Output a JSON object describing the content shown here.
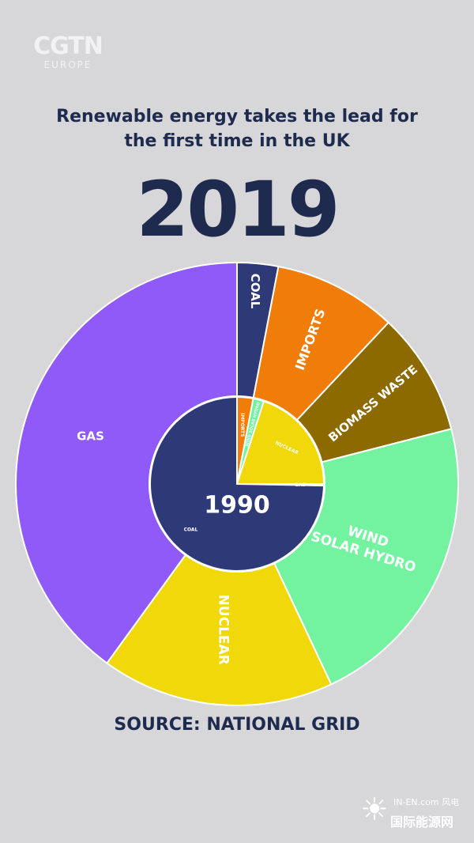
{
  "logo": {
    "main": "CGTN",
    "sub": "EUROPE"
  },
  "headline": {
    "line1": "Renewable energy takes the lead for",
    "line2": "the first time in the UK"
  },
  "year_outer": "2019",
  "year_inner": "1990",
  "source": "SOURCE: NATIONAL GRID",
  "watermark": {
    "text": "国际能源网",
    "small": "IN-EN.com 风电"
  },
  "colors": {
    "background": "#d7d7d9",
    "text": "#1e2a4e",
    "coal": "#2e3a78",
    "imports": "#f07c0a",
    "biomass_waste": "#8c6a00",
    "wind_solar_hydro": "#73f2a0",
    "nuclear": "#f0d80a",
    "gas": "#8f5af7"
  },
  "chart_data": [
    {
      "type": "pie",
      "title": "2019",
      "ring": "outer",
      "start": "12 o'clock, clockwise",
      "slices": [
        {
          "label": "COAL",
          "value": 3,
          "color": "#2e3a78"
        },
        {
          "label": "IMPORTS",
          "value": 9,
          "color": "#f07c0a"
        },
        {
          "label": "BIOMASS WASTE",
          "value": 9,
          "color": "#8c6a00"
        },
        {
          "label": "WIND\nSOLAR HYDRO",
          "value": 22,
          "color": "#73f2a0"
        },
        {
          "label": "NUCLEAR",
          "value": 17,
          "color": "#f0d80a"
        },
        {
          "label": "GAS",
          "value": 40,
          "color": "#8f5af7"
        }
      ]
    },
    {
      "type": "pie",
      "title": "1990",
      "ring": "inner",
      "start": "12 o'clock, clockwise",
      "slices": [
        {
          "label": "IMPORTS",
          "value": 3,
          "color": "#f07c0a"
        },
        {
          "label": "WIND SOLAR HYDRO",
          "value": 2,
          "color": "#73f2a0"
        },
        {
          "label": "NUCLEAR",
          "value": 20,
          "color": "#f0d80a"
        },
        {
          "label": "GAS",
          "value": 0.3,
          "color": "#8f5af7"
        },
        {
          "label": "COAL",
          "value": 74.7,
          "color": "#2e3a78"
        }
      ]
    }
  ]
}
